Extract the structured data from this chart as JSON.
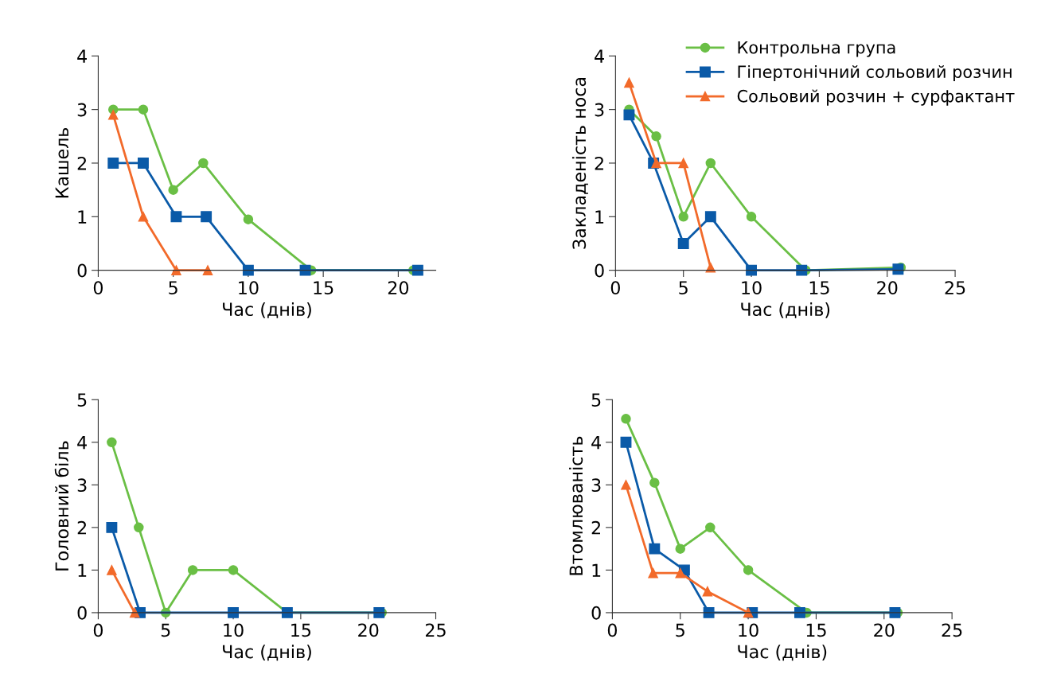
{
  "chart_data": [
    {
      "type": "line",
      "xlabel": "Час (днів)",
      "ylabel": "Кашель",
      "xlim": [
        0,
        22.5
      ],
      "xticks": [
        0,
        5,
        10,
        15,
        20
      ],
      "ylim": [
        0,
        4
      ],
      "yticks": [
        0,
        1,
        2,
        3,
        4
      ],
      "grid": false,
      "legend": false,
      "series": [
        {
          "color": "#6abf45",
          "marker": "circle",
          "x": [
            1,
            3,
            5,
            7,
            10,
            14.2,
            21
          ],
          "values": [
            3,
            3,
            1.5,
            2,
            0.95,
            0,
            0
          ]
        },
        {
          "color": "#0a5aa8",
          "marker": "square",
          "x": [
            1,
            3,
            5.2,
            7.2,
            10,
            13.8,
            21.3
          ],
          "values": [
            2,
            2,
            1,
            1,
            0,
            0,
            0
          ]
        },
        {
          "color": "#f26a2a",
          "marker": "triangle",
          "x": [
            1,
            3,
            5.2,
            7.3
          ],
          "values": [
            2.9,
            1,
            0,
            0
          ]
        }
      ]
    },
    {
      "type": "line",
      "xlabel": "Час (днів)",
      "ylabel": "Закладеність носа",
      "xlim": [
        0,
        25
      ],
      "xticks": [
        0,
        5,
        10,
        15,
        20,
        25
      ],
      "ylim": [
        0,
        4
      ],
      "yticks": [
        0,
        1,
        2,
        3,
        4
      ],
      "grid": false,
      "legend": "top right",
      "series": [
        {
          "name": "Контрольна група",
          "color": "#6abf45",
          "marker": "circle",
          "x": [
            1,
            3,
            5,
            7,
            10,
            14,
            21
          ],
          "values": [
            3,
            2.5,
            1,
            2,
            1,
            0,
            0.05
          ]
        },
        {
          "name": "Гіпертонічний сольовий розчин",
          "color": "#0a5aa8",
          "marker": "square",
          "x": [
            1,
            2.8,
            5,
            7,
            10,
            13.7,
            20.8
          ],
          "values": [
            2.9,
            2,
            0.5,
            1,
            0,
            0,
            0.02
          ]
        },
        {
          "name": "Сольовий розчин + сурфактант",
          "color": "#f26a2a",
          "marker": "triangle",
          "x": [
            1,
            3,
            5,
            7
          ],
          "values": [
            3.5,
            2,
            2,
            0.05
          ]
        }
      ]
    },
    {
      "type": "line",
      "xlabel": "Час (днів)",
      "ylabel": "Головний біль",
      "xlim": [
        0,
        25
      ],
      "xticks": [
        0,
        5,
        10,
        15,
        20,
        25
      ],
      "ylim": [
        0,
        5
      ],
      "yticks": [
        0,
        1,
        2,
        3,
        4,
        5
      ],
      "grid": false,
      "legend": false,
      "series": [
        {
          "color": "#6abf45",
          "marker": "circle",
          "x": [
            1,
            3,
            5,
            7,
            10,
            14,
            21
          ],
          "values": [
            4,
            2,
            0,
            1,
            1,
            0,
            0
          ]
        },
        {
          "color": "#0a5aa8",
          "marker": "square",
          "x": [
            1,
            3.1,
            10,
            14,
            20.8
          ],
          "values": [
            2,
            0,
            0,
            0,
            0
          ]
        },
        {
          "color": "#f26a2a",
          "marker": "triangle",
          "x": [
            1,
            2.7
          ],
          "values": [
            1,
            0
          ]
        }
      ]
    },
    {
      "type": "line",
      "xlabel": "Час (днів)",
      "ylabel": "Втомлюваність",
      "xlim": [
        0,
        25
      ],
      "xticks": [
        0,
        5,
        10,
        15,
        20,
        25
      ],
      "ylim": [
        0,
        5
      ],
      "yticks": [
        0,
        1,
        2,
        3,
        4,
        5
      ],
      "grid": false,
      "legend": false,
      "series": [
        {
          "color": "#6abf45",
          "marker": "circle",
          "x": [
            1,
            3.1,
            5,
            7.2,
            10,
            14.3,
            21
          ],
          "values": [
            4.55,
            3.05,
            1.5,
            2,
            1,
            0,
            0
          ]
        },
        {
          "color": "#0a5aa8",
          "marker": "square",
          "x": [
            1,
            3.1,
            5.3,
            7.1,
            10.3,
            13.8,
            20.8
          ],
          "values": [
            4,
            1.5,
            1,
            0,
            0,
            0,
            0
          ]
        },
        {
          "color": "#f26a2a",
          "marker": "triangle",
          "x": [
            1,
            3,
            5,
            7,
            10
          ],
          "values": [
            3,
            0.93,
            0.93,
            0.5,
            0
          ]
        }
      ]
    }
  ]
}
